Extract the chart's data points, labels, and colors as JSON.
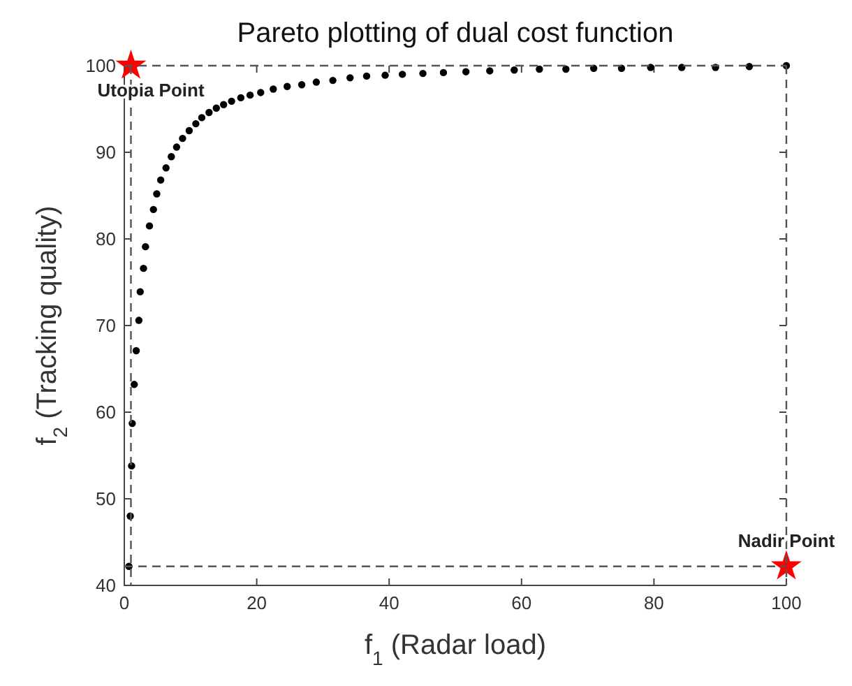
{
  "chart_data": {
    "type": "scatter",
    "title": "Pareto plotting of dual cost function",
    "xlabel": "f$_{1}$ (Radar load)",
    "ylabel": "f$_{2}$ (Tracking quality)",
    "xlim": [
      0,
      100
    ],
    "xticks": [
      0,
      20,
      40,
      60,
      80,
      100
    ],
    "ylim": [
      40,
      100
    ],
    "yticks": [
      40,
      50,
      60,
      70,
      80,
      90,
      100
    ],
    "grid": false,
    "series": [
      {
        "marker": "circle",
        "color": "#000000",
        "x": [
          0.7,
          0.9,
          1.1,
          1.2,
          1.5,
          1.8,
          2.2,
          2.4,
          2.9,
          3.2,
          3.8,
          4.4,
          4.9,
          5.5,
          6.3,
          7.1,
          7.9,
          8.8,
          9.8,
          10.8,
          11.7,
          12.8,
          13.9,
          15.0,
          16.2,
          17.6,
          19.0,
          20.6,
          22.5,
          24.6,
          26.8,
          29.0,
          31.5,
          34.1,
          36.6,
          39.4,
          42.0,
          45.1,
          48.2,
          51.6,
          55.2,
          58.9,
          62.7,
          66.7,
          70.9,
          75.1,
          79.5,
          84.2,
          89.3,
          94.4,
          100
        ],
        "values": [
          42.2,
          48.0,
          53.8,
          58.7,
          63.2,
          67.1,
          70.6,
          73.9,
          76.6,
          79.1,
          81.5,
          83.4,
          85.2,
          86.8,
          88.2,
          89.5,
          90.6,
          91.6,
          92.5,
          93.3,
          94.0,
          94.6,
          95.1,
          95.5,
          95.9,
          96.3,
          96.6,
          96.9,
          97.3,
          97.6,
          97.8,
          98.1,
          98.3,
          98.6,
          98.8,
          98.9,
          99.0,
          99.1,
          99.2,
          99.3,
          99.4,
          99.5,
          99.6,
          99.6,
          99.7,
          99.7,
          99.8,
          99.8,
          99.8,
          99.9,
          100
        ]
      },
      {
        "type": "scatter",
        "marker": "star",
        "color": "#ff0000",
        "x": [
          1,
          100
        ],
        "values": [
          100,
          42.2
        ]
      }
    ],
    "ref_lines": [
      {
        "axis": "x",
        "value": 1,
        "color": "#555555",
        "line_style": "dashed"
      },
      {
        "axis": "x",
        "value": 100,
        "color": "#555555",
        "line_style": "dashed"
      },
      {
        "axis": "y",
        "value": 100,
        "color": "#555555",
        "line_style": "dashed"
      },
      {
        "axis": "y",
        "value": 42.2,
        "color": "#555555",
        "line_style": "dashed"
      }
    ],
    "annotations": [
      {
        "text": "Utopia Point",
        "x": 1,
        "y": 100
      },
      {
        "text": "Nadir Point",
        "x": 100,
        "y": 42.2
      }
    ]
  }
}
